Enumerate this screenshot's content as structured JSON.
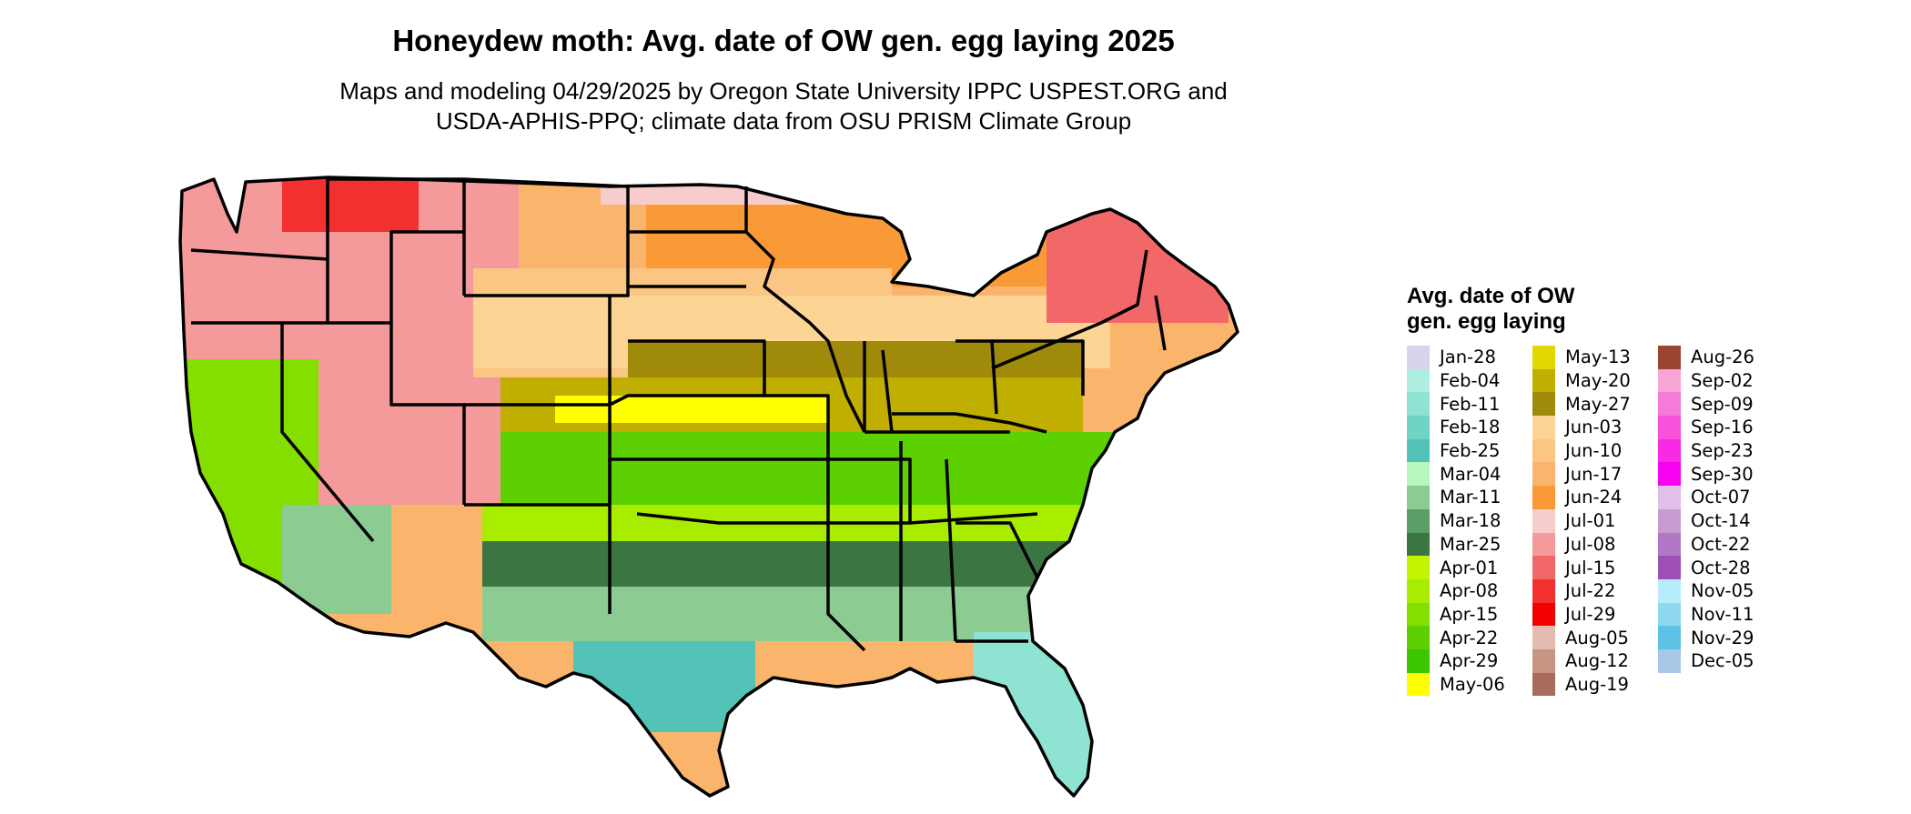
{
  "header": {
    "title": "Honeydew moth: Avg. date of OW gen. egg laying 2025",
    "subtitle_line1": "Maps and modeling 04/29/2025 by Oregon State University IPPC USPEST.ORG and",
    "subtitle_line2": "USDA-APHIS-PPQ; climate data from OSU PRISM Climate Group"
  },
  "legend": {
    "title_line1": "Avg. date of OW",
    "title_line2": "gen. egg laying",
    "columns": [
      [
        {
          "label": "Jan-28",
          "color": "#d9d2ec"
        },
        {
          "label": "Feb-04",
          "color": "#adf0e2"
        },
        {
          "label": "Feb-11",
          "color": "#8fe3d3"
        },
        {
          "label": "Feb-18",
          "color": "#6fd4c4"
        },
        {
          "label": "Feb-25",
          "color": "#52c3b6"
        },
        {
          "label": "Mar-04",
          "color": "#b8f6c0"
        },
        {
          "label": "Mar-11",
          "color": "#8ccc92"
        },
        {
          "label": "Mar-18",
          "color": "#5c9e68"
        },
        {
          "label": "Mar-25",
          "color": "#3b7542"
        },
        {
          "label": "Apr-01",
          "color": "#c4f500"
        },
        {
          "label": "Apr-08",
          "color": "#a8ec00"
        },
        {
          "label": "Apr-15",
          "color": "#84de00"
        },
        {
          "label": "Apr-22",
          "color": "#5cd000"
        },
        {
          "label": "Apr-29",
          "color": "#3cc600"
        },
        {
          "label": "May-06",
          "color": "#ffff00"
        }
      ],
      [
        {
          "label": "May-13",
          "color": "#e0d800"
        },
        {
          "label": "May-20",
          "color": "#c0ae00"
        },
        {
          "label": "May-27",
          "color": "#a08a0a"
        },
        {
          "label": "Jun-03",
          "color": "#fcd494"
        },
        {
          "label": "Jun-10",
          "color": "#fbc583"
        },
        {
          "label": "Jun-17",
          "color": "#fab46b"
        },
        {
          "label": "Jun-24",
          "color": "#f99a36"
        },
        {
          "label": "Jul-01",
          "color": "#f6cccc"
        },
        {
          "label": "Jul-08",
          "color": "#f49a9a"
        },
        {
          "label": "Jul-15",
          "color": "#f26868"
        },
        {
          "label": "Jul-22",
          "color": "#f23030"
        },
        {
          "label": "Jul-29",
          "color": "#f20000"
        },
        {
          "label": "Aug-05",
          "color": "#e2bcb0"
        },
        {
          "label": "Aug-12",
          "color": "#c89484"
        },
        {
          "label": "Aug-19",
          "color": "#a86c5c"
        }
      ],
      [
        {
          "label": "Aug-26",
          "color": "#9a4432"
        },
        {
          "label": "Sep-02",
          "color": "#f7a6d6"
        },
        {
          "label": "Sep-09",
          "color": "#f87ad8"
        },
        {
          "label": "Sep-16",
          "color": "#f852da"
        },
        {
          "label": "Sep-23",
          "color": "#f828e4"
        },
        {
          "label": "Sep-30",
          "color": "#f800f0"
        },
        {
          "label": "Oct-07",
          "color": "#e0c0e6"
        },
        {
          "label": "Oct-14",
          "color": "#c89ad2"
        },
        {
          "label": "Oct-22",
          "color": "#b278c6"
        },
        {
          "label": "Oct-28",
          "color": "#9e50b6"
        },
        {
          "label": "Nov-05",
          "color": "#b6ecfc"
        },
        {
          "label": "Nov-11",
          "color": "#8ed8f0"
        },
        {
          "label": "Nov-29",
          "color": "#5ec2e6"
        },
        {
          "label": "Dec-05",
          "color": "#a8c6e6"
        }
      ]
    ]
  }
}
